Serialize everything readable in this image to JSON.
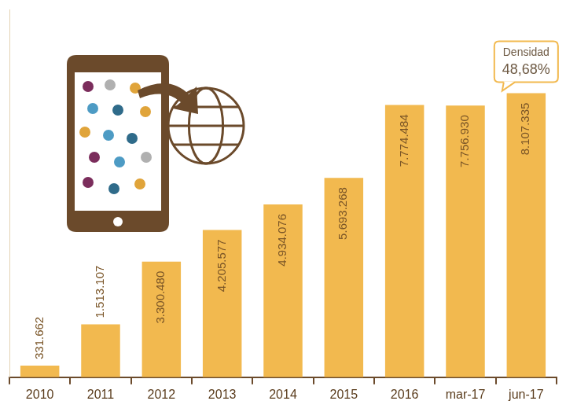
{
  "chart_data": {
    "type": "bar",
    "categories": [
      "2010",
      "2011",
      "2012",
      "2013",
      "2014",
      "2015",
      "2016",
      "mar-17",
      "jun-17"
    ],
    "values": [
      331662,
      1513107,
      3300480,
      4205577,
      4934076,
      5693268,
      7774484,
      7756930,
      8107335
    ],
    "value_labels": [
      "331.662",
      "1.513.107",
      "3.300.480",
      "4.205.577",
      "4.934.076",
      "5.693.268",
      "7.774.484",
      "7.756.930",
      "8.107.335"
    ],
    "color": "#f2b94f",
    "ylim": [
      0,
      10500000
    ],
    "grid": false,
    "data_labels": true,
    "tick_labels": "x",
    "annotations": [
      {
        "text": [
          "Densidad",
          "48,68%"
        ],
        "category": "jun-17"
      }
    ]
  }
}
